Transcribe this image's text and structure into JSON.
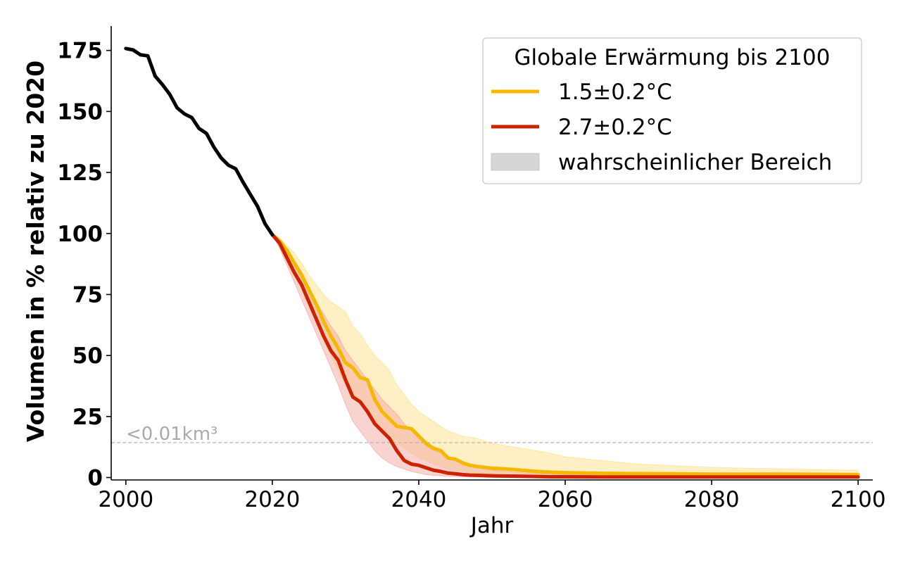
{
  "chart_data": {
    "type": "line",
    "xlabel": "Jahr",
    "ylabel": "Volumen in % relativ zu 2020",
    "xlim": [
      1998,
      2102
    ],
    "ylim": [
      -1,
      185
    ],
    "xticks": [
      2000,
      2020,
      2040,
      2060,
      2080,
      2100
    ],
    "yticks": [
      0,
      25,
      50,
      75,
      100,
      125,
      150,
      175
    ],
    "grid": false,
    "legend": {
      "title": "Globale Erwärmung bis 2100",
      "placement": "top-right",
      "entries": [
        {
          "label": "1.5±0.2°C",
          "kind": "line",
          "color": "#f5b800"
        },
        {
          "label": "2.7±0.2°C",
          "kind": "line",
          "color": "#cc2200"
        },
        {
          "label": "wahrscheinlicher Bereich",
          "kind": "patch",
          "color": "#d6d6d6"
        }
      ]
    },
    "annotation": {
      "text": "<0.01km³",
      "y": 14.3,
      "x": 2000
    },
    "historical": {
      "color": "#000000",
      "x": [
        2000,
        2001,
        2002,
        2003,
        2004,
        2005,
        2006,
        2007,
        2008,
        2009,
        2010,
        2011,
        2012,
        2013,
        2014,
        2015,
        2016,
        2017,
        2018,
        2019,
        2020
      ],
      "y": [
        175.8,
        175.2,
        173.2,
        172.8,
        164.5,
        161.0,
        157.0,
        151.5,
        149.0,
        147.5,
        143.0,
        141.0,
        135.5,
        131.0,
        128.0,
        126.5,
        121.0,
        116.0,
        111.0,
        104.0,
        99.5
      ]
    },
    "series": [
      {
        "name": "1.5±0.2°C",
        "color": "#f5b800",
        "band_color": "#ffe08a",
        "x": [
          2020,
          2021,
          2022,
          2023,
          2024,
          2025,
          2026,
          2027,
          2028,
          2029,
          2030,
          2031,
          2032,
          2033,
          2034,
          2035,
          2036,
          2037,
          2038,
          2039,
          2040,
          2041,
          2042,
          2043,
          2044,
          2045,
          2046,
          2047,
          2048,
          2049,
          2050,
          2052,
          2054,
          2056,
          2058,
          2060,
          2065,
          2070,
          2075,
          2080,
          2085,
          2090,
          2095,
          2100
        ],
        "y": [
          99.5,
          97,
          93,
          88,
          83,
          77,
          71,
          64,
          58,
          53,
          47,
          45,
          41,
          40,
          32,
          27,
          24,
          21,
          20.5,
          20,
          17,
          14,
          12,
          11,
          8,
          7.5,
          6,
          5,
          4.5,
          4.2,
          3.8,
          3.5,
          3.0,
          2.5,
          2.2,
          2.0,
          1.7,
          1.6,
          1.5,
          1.4,
          1.4,
          1.4,
          1.3,
          1.2
        ],
        "low": [
          99.5,
          96,
          91,
          85,
          79,
          72,
          65,
          57,
          50,
          44,
          38,
          35,
          31,
          28,
          23,
          19,
          16,
          14,
          12,
          10,
          8,
          7,
          5.5,
          4.5,
          3.5,
          3,
          2.5,
          2,
          1.7,
          1.5,
          1.3,
          1.1,
          1.0,
          0.9,
          0.8,
          0.7,
          0.6,
          0.5,
          0.5,
          0.4,
          0.4,
          0.4,
          0.4,
          0.4
        ],
        "high": [
          99.5,
          98,
          95,
          92,
          88,
          83,
          79,
          75,
          72,
          70,
          68,
          62,
          59,
          54,
          50,
          47,
          44,
          38,
          34,
          30,
          27,
          25,
          23,
          21,
          19,
          18,
          17,
          16.5,
          16,
          15,
          14,
          13,
          12,
          11,
          10,
          8.5,
          7,
          5.5,
          4.8,
          4.2,
          3.8,
          3.5,
          3.2,
          3.0
        ]
      },
      {
        "name": "2.7±0.2°C",
        "color": "#cc2200",
        "band_color": "#f2a8a0",
        "x": [
          2020,
          2021,
          2022,
          2023,
          2024,
          2025,
          2026,
          2027,
          2028,
          2029,
          2030,
          2031,
          2032,
          2033,
          2034,
          2035,
          2036,
          2037,
          2038,
          2039,
          2040,
          2041,
          2042,
          2043,
          2044,
          2045,
          2046,
          2047,
          2048,
          2049,
          2050,
          2052,
          2054,
          2056,
          2058,
          2060,
          2065,
          2070,
          2075,
          2080,
          2085,
          2090,
          2095,
          2100
        ],
        "y": [
          99.5,
          96,
          90,
          84,
          79,
          72,
          65,
          58,
          52,
          48,
          40,
          33,
          31,
          27,
          22,
          19,
          16,
          11,
          7,
          5.5,
          5,
          4,
          3,
          2.5,
          1.8,
          1.5,
          1.2,
          1.0,
          0.9,
          0.8,
          0.7,
          0.6,
          0.5,
          0.4,
          0.3,
          0.3,
          0.2,
          0.2,
          0.2,
          0.2,
          0.2,
          0.2,
          0.2,
          0.2
        ],
        "low": [
          99.5,
          94,
          87,
          80,
          73,
          66,
          59,
          52,
          45,
          38,
          30,
          23,
          19,
          15,
          11,
          8,
          6,
          4.5,
          3.5,
          2.5,
          1.8,
          1.2,
          0.9,
          0.7,
          0.5,
          0.4,
          0.3,
          0.2,
          0.2,
          0.1,
          0.1,
          0.1,
          0.1,
          0.1,
          0.1,
          0.1,
          0.1,
          0.1,
          0.1,
          0.1,
          0.1,
          0.1,
          0.1,
          0.1
        ],
        "high": [
          99.5,
          97,
          93,
          88,
          84,
          78,
          72,
          67,
          62,
          58,
          52,
          48,
          44,
          40,
          36,
          32,
          29,
          26,
          22,
          19,
          16,
          13,
          11,
          10,
          8,
          7,
          6,
          5,
          4,
          3.5,
          3,
          2.5,
          2,
          1.7,
          1.5,
          1.3,
          1.1,
          1.0,
          0.9,
          0.8,
          0.8,
          0.7,
          0.7,
          0.7
        ]
      }
    ]
  }
}
